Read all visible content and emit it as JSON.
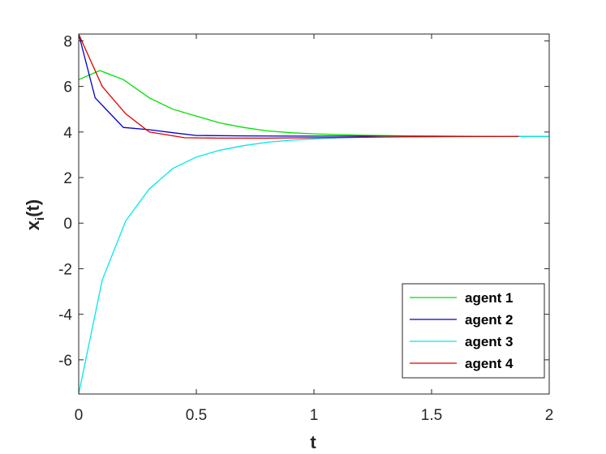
{
  "chart_data": {
    "type": "line",
    "title": "",
    "xlabel": "t",
    "ylabel_main": "x",
    "ylabel_sub": "i",
    "ylabel_tail": "(t)",
    "xlim": [
      0,
      2
    ],
    "ylim": [
      -7.5,
      8.3
    ],
    "xticks": [
      0,
      0.5,
      1,
      1.5,
      2
    ],
    "xtick_labels": [
      "0",
      "0.5",
      "1",
      "1.5",
      "2"
    ],
    "yticks": [
      -6,
      -4,
      -2,
      0,
      2,
      4,
      6,
      8
    ],
    "ytick_labels": [
      "-6",
      "-4",
      "-2",
      "0",
      "2",
      "4",
      "6",
      "8"
    ],
    "grid": false,
    "legend_position": "bottom-right",
    "series": [
      {
        "name": "agent 1",
        "color": "#00e000",
        "x": [
          0,
          0.09,
          0.19,
          0.3,
          0.4,
          0.5,
          0.6,
          0.7,
          0.8,
          0.9,
          1.0,
          1.2,
          1.4,
          1.6,
          1.8,
          2.0
        ],
        "y": [
          6.3,
          6.7,
          6.3,
          5.5,
          5.0,
          4.7,
          4.4,
          4.2,
          4.05,
          3.97,
          3.92,
          3.86,
          3.83,
          3.82,
          3.81,
          3.81
        ]
      },
      {
        "name": "agent 2",
        "color": "#0000c8",
        "x": [
          0,
          0.07,
          0.19,
          0.3,
          0.4,
          0.5,
          0.7,
          0.9,
          1.1,
          1.3,
          1.5,
          1.7,
          1.88
        ],
        "y": [
          8.3,
          5.5,
          4.2,
          4.1,
          3.97,
          3.85,
          3.83,
          3.82,
          3.82,
          3.81,
          3.81,
          3.81,
          3.81
        ]
      },
      {
        "name": "agent 3",
        "color": "#00e8e8",
        "x": [
          0,
          0.1,
          0.2,
          0.3,
          0.4,
          0.5,
          0.6,
          0.7,
          0.8,
          0.9,
          1.0,
          1.1,
          1.2,
          1.3,
          1.5,
          1.7,
          1.9,
          2.0
        ],
        "y": [
          -7.5,
          -2.5,
          0.1,
          1.5,
          2.4,
          2.9,
          3.2,
          3.4,
          3.55,
          3.64,
          3.7,
          3.74,
          3.77,
          3.79,
          3.8,
          3.81,
          3.81,
          3.81
        ]
      },
      {
        "name": "agent 4",
        "color": "#e00000",
        "x": [
          0,
          0.1,
          0.2,
          0.3,
          0.45,
          0.6,
          0.8,
          1.0,
          1.2,
          1.4,
          1.6,
          1.87
        ],
        "y": [
          8.3,
          6.0,
          4.8,
          4.0,
          3.75,
          3.73,
          3.73,
          3.75,
          3.77,
          3.79,
          3.8,
          3.81
        ]
      }
    ]
  }
}
